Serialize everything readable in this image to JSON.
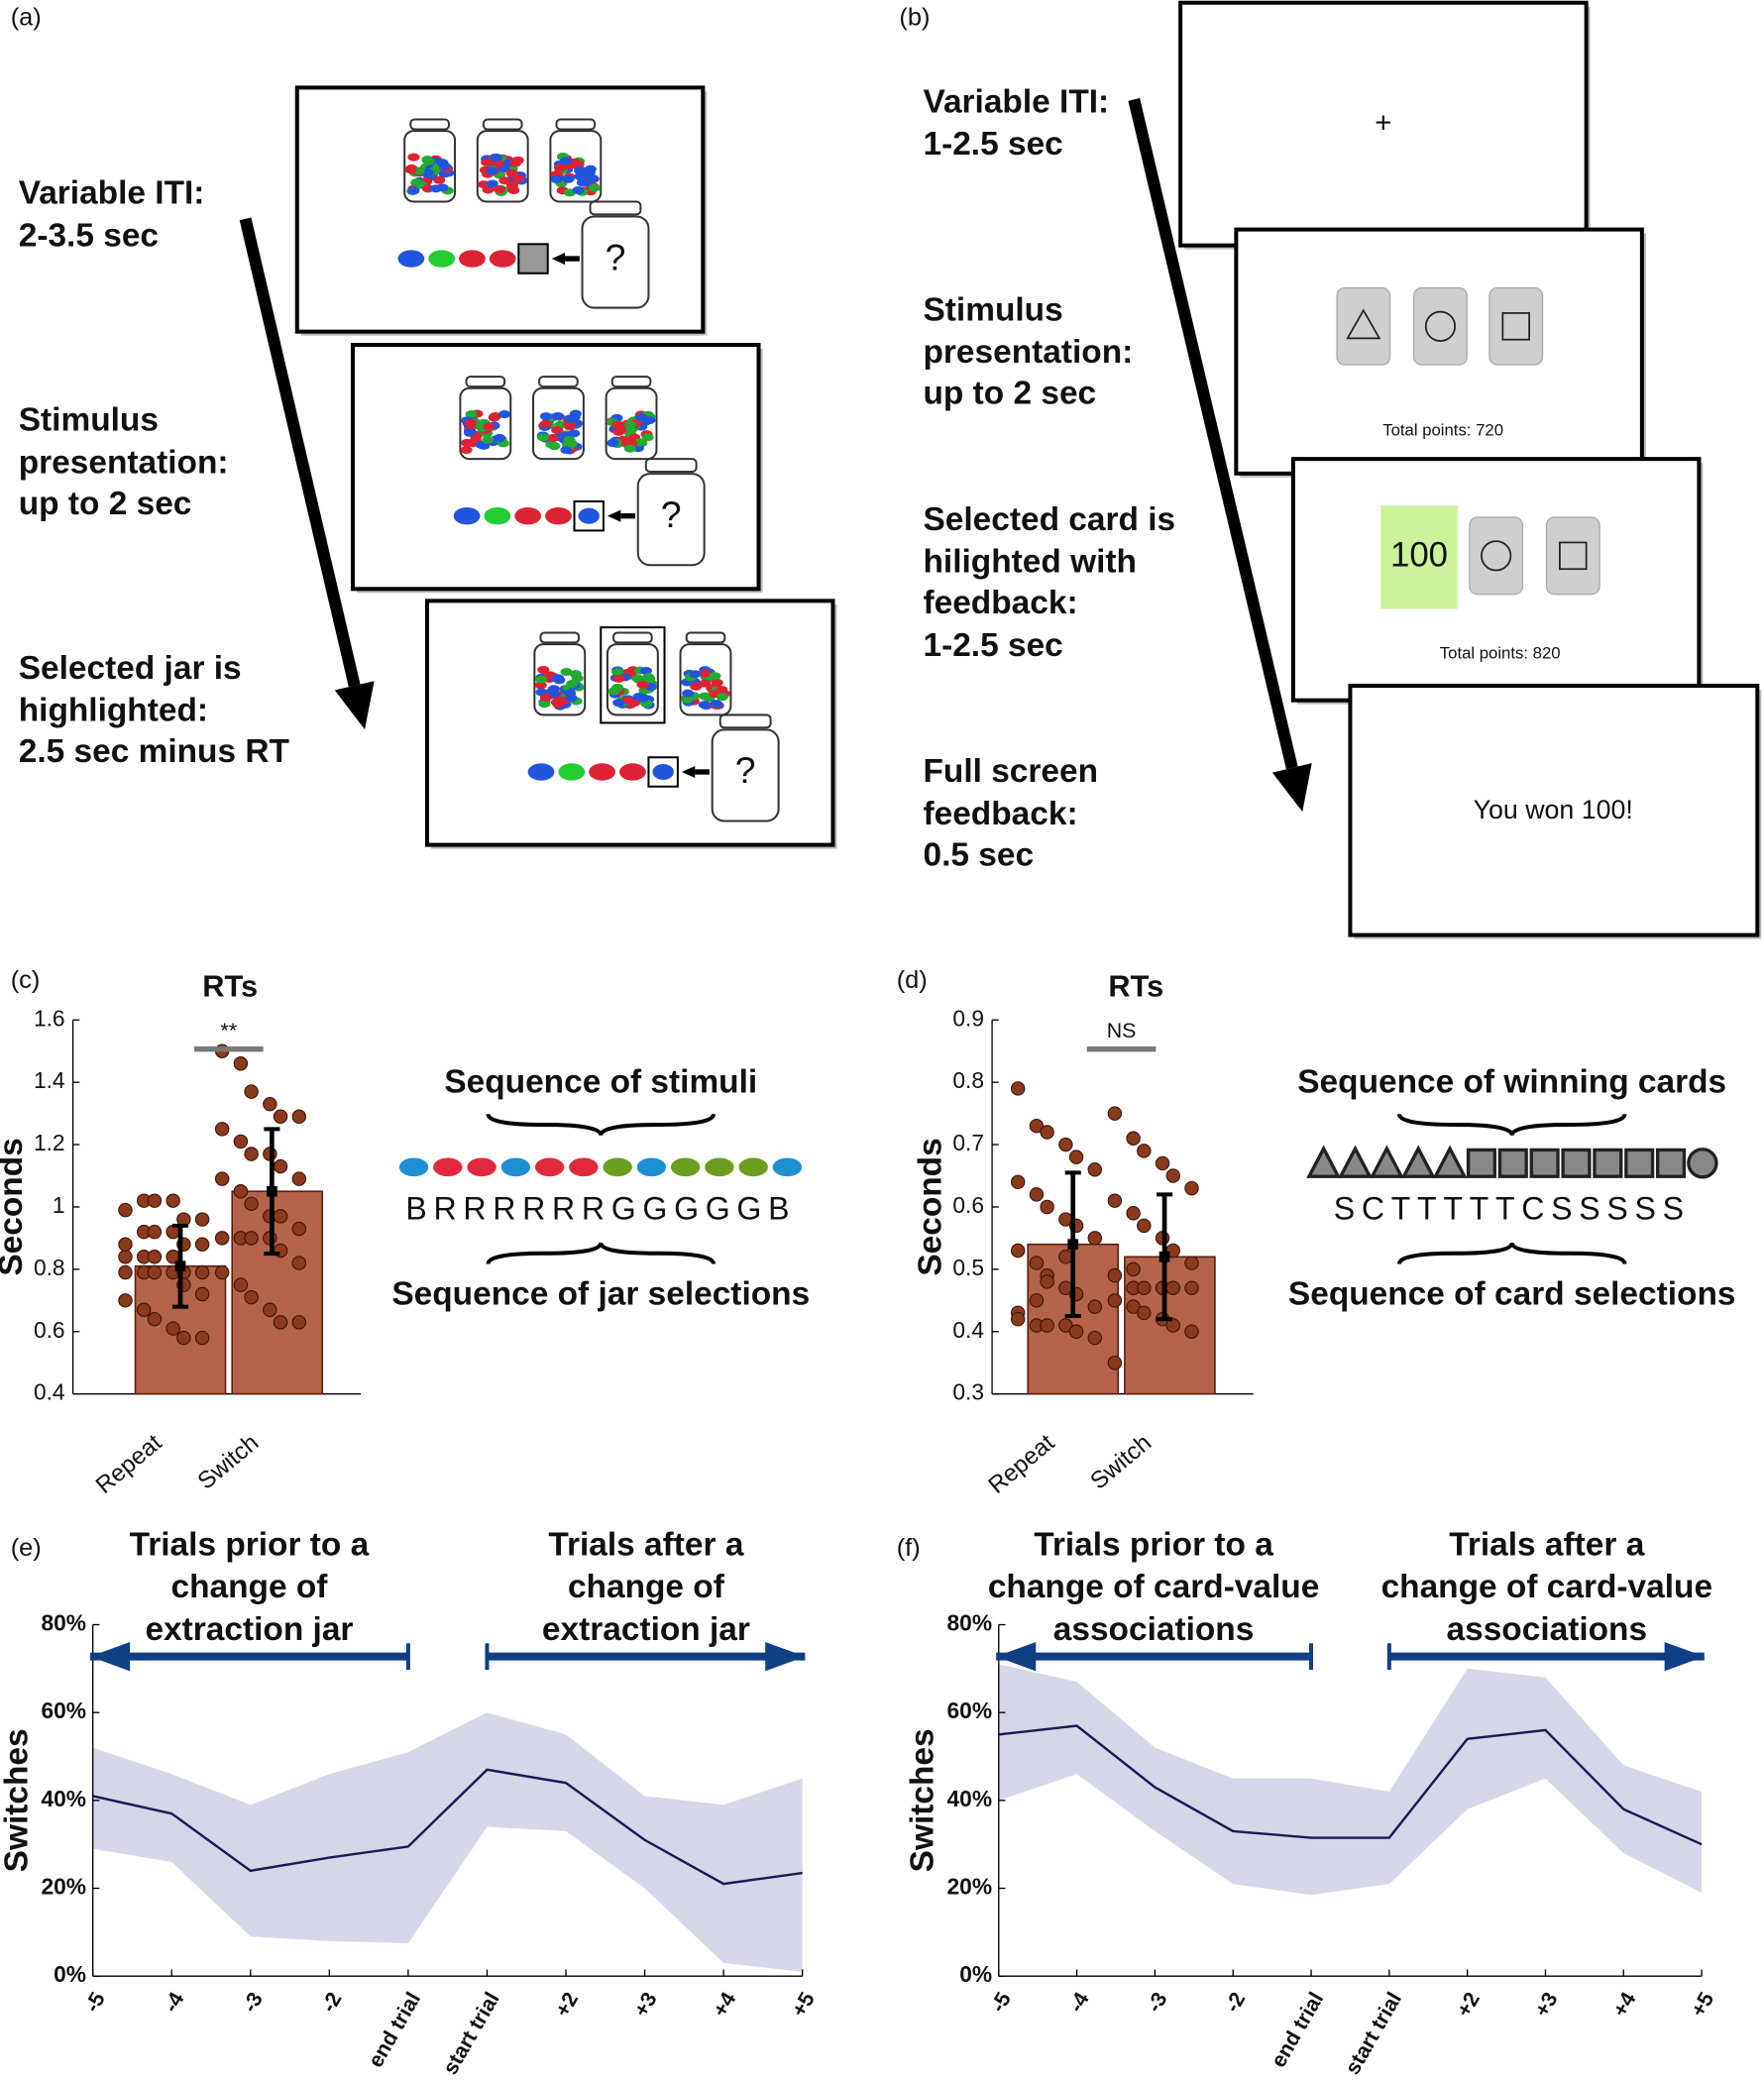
{
  "diagram_a": {
    "label": "(a)",
    "steps": [
      [
        "Variable ITI:",
        "2-3.5 sec"
      ],
      [
        "Stimulus",
        "presentation:",
        "up to 2 sec"
      ],
      [
        "Selected jar is",
        "highlighted:",
        "2.5 sec minus RT"
      ]
    ],
    "jar_question": "?"
  },
  "diagram_b": {
    "label": "(b)",
    "steps": [
      [
        "Variable ITI:",
        "1-2.5 sec"
      ],
      [
        "Stimulus",
        "presentation:",
        "up to 2 sec"
      ],
      [
        "Selected card is",
        "hilighted with",
        "feedback:",
        "1-2.5 sec"
      ],
      [
        "Full screen",
        "feedback:",
        "0.5 sec"
      ]
    ],
    "fixation": "+",
    "totals": [
      "Total points: 720",
      "Total points: 820"
    ],
    "card_feedback": "100",
    "final_message": "You won 100!"
  },
  "chart_data": [
    {
      "type": "bar",
      "panel_label": "(c)",
      "title": "RTs",
      "y_label": "Seconds",
      "categories": [
        "Repeat",
        "Switch"
      ],
      "values": [
        0.81,
        1.05
      ],
      "errors": [
        0.13,
        0.2
      ],
      "points": [
        [
          0.79,
          0.79,
          0.79,
          0.79,
          0.79,
          0.79,
          0.84,
          0.84,
          0.84,
          0.84,
          0.88,
          0.88,
          0.88,
          0.92,
          0.92,
          0.92,
          0.96,
          0.96,
          0.99,
          1.02,
          1.02,
          1.02,
          0.75,
          0.72,
          0.7,
          0.67,
          0.64,
          0.61,
          0.58,
          0.58
        ],
        [
          1.5,
          1.46,
          1.37,
          1.33,
          1.29,
          1.29,
          1.25,
          1.21,
          1.17,
          1.17,
          1.13,
          1.09,
          1.09,
          1.05,
          1.01,
          0.97,
          0.97,
          0.93,
          0.9,
          0.9,
          0.9,
          0.9,
          0.86,
          0.82,
          0.79,
          0.75,
          0.71,
          0.67,
          0.63,
          0.63
        ]
      ],
      "ylim": [
        0.4,
        1.6
      ],
      "yticks": [
        0.4,
        0.6,
        0.8,
        1,
        1.2,
        1.4,
        1.6
      ],
      "color": "#b5634a",
      "edge_color": "#5a2010",
      "point_color": "#8b3a1e",
      "significance": "**",
      "sequence_top_label": "Sequence of stimuli",
      "sequence_colors": [
        "#1f8fd4",
        "#e2283c",
        "#e2283c",
        "#1f8fd4",
        "#e2283c",
        "#e2283c",
        "#6a9e1f",
        "#1f8fd4",
        "#6a9e1f",
        "#6a9e1f",
        "#6a9e1f",
        "#1f8fd4"
      ],
      "sequence_letters": "BRRRRRRGGGGGB",
      "sequence_bottom_label": "Sequence of jar selections"
    },
    {
      "type": "bar",
      "panel_label": "(d)",
      "title": "RTs",
      "y_label": "Seconds",
      "categories": [
        "Repeat",
        "Switch"
      ],
      "values": [
        0.54,
        0.52
      ],
      "errors": [
        0.115,
        0.1
      ],
      "points": [
        [
          0.79,
          0.73,
          0.72,
          0.7,
          0.68,
          0.66,
          0.64,
          0.62,
          0.6,
          0.58,
          0.57,
          0.55,
          0.53,
          0.51,
          0.49,
          0.47,
          0.46,
          0.44,
          0.43,
          0.41,
          0.41,
          0.41,
          0.4,
          0.39,
          0.42,
          0.45,
          0.48,
          0.52
        ],
        [
          0.75,
          0.71,
          0.69,
          0.67,
          0.65,
          0.63,
          0.61,
          0.59,
          0.57,
          0.55,
          0.53,
          0.51,
          0.49,
          0.47,
          0.47,
          0.47,
          0.47,
          0.47,
          0.45,
          0.44,
          0.43,
          0.42,
          0.41,
          0.4,
          0.35,
          0.5
        ]
      ],
      "ylim": [
        0.3,
        0.9
      ],
      "yticks": [
        0.3,
        0.4,
        0.5,
        0.6,
        0.7,
        0.8,
        0.9
      ],
      "color": "#b5634a",
      "edge_color": "#5a2010",
      "point_color": "#8b3a1e",
      "significance": "NS",
      "sequence_top_label": "Sequence of winning cards",
      "sequence_shapes": [
        "triangle",
        "triangle",
        "triangle",
        "triangle",
        "triangle",
        "square",
        "square",
        "square",
        "square",
        "square",
        "square",
        "square",
        "circle"
      ],
      "sequence_letters": "SCTTTTTCSSSSS",
      "sequence_bottom_label": "Sequence of card selections"
    },
    {
      "type": "line",
      "panel_label": "(e)",
      "y_label": "Switches",
      "categories": [
        "-5",
        "-4",
        "-3",
        "-2",
        "end trial",
        "start trial",
        "+2",
        "+3",
        "+4",
        "+5"
      ],
      "values": [
        41,
        37,
        24,
        27,
        29.5,
        47,
        44,
        31,
        21,
        23.5
      ],
      "lower": [
        29,
        26,
        9,
        8,
        7.5,
        34,
        33,
        20,
        3,
        1
      ],
      "upper": [
        52,
        46,
        39,
        46,
        51,
        60,
        55,
        41,
        39,
        45
      ],
      "ylim": [
        0,
        80
      ],
      "yticks": [
        {
          "value": 0,
          "label": "0%"
        },
        {
          "value": 20,
          "label": "20%"
        },
        {
          "value": 40,
          "label": "40%"
        },
        {
          "value": 60,
          "label": "60%"
        },
        {
          "value": 80,
          "label": "80%"
        }
      ],
      "color": "#1a1a5a",
      "band_color": "#d6d6e8",
      "arrow_color": "#0f3f85",
      "annotations": [
        [
          "Trials prior to a",
          "change of",
          "extraction jar"
        ],
        [
          "Trials after a",
          "change of",
          "extraction jar"
        ]
      ]
    },
    {
      "type": "line",
      "panel_label": "(f)",
      "y_label": "Switches",
      "categories": [
        "-5",
        "-4",
        "-3",
        "-2",
        "end trial",
        "start trial",
        "+2",
        "+3",
        "+4",
        "+5"
      ],
      "values": [
        55,
        57,
        43,
        33,
        31.5,
        31.5,
        54,
        56,
        38,
        30
      ],
      "lower": [
        40,
        46,
        33,
        21,
        18.5,
        21,
        38,
        45,
        28,
        19
      ],
      "upper": [
        71,
        67,
        52,
        45,
        45,
        42,
        70,
        68,
        48,
        42
      ],
      "ylim": [
        0,
        80
      ],
      "yticks": [
        {
          "value": 0,
          "label": "0%"
        },
        {
          "value": 20,
          "label": "20%"
        },
        {
          "value": 40,
          "label": "40%"
        },
        {
          "value": 60,
          "label": "60%"
        },
        {
          "value": 80,
          "label": "80%"
        }
      ],
      "color": "#1a1a5a",
      "band_color": "#d6d6e8",
      "arrow_color": "#0f3f85",
      "annotations": [
        [
          "Trials prior to a",
          "change of card-value",
          "associations"
        ],
        [
          "Trials after a",
          "change of card-value",
          "associations"
        ]
      ]
    }
  ]
}
